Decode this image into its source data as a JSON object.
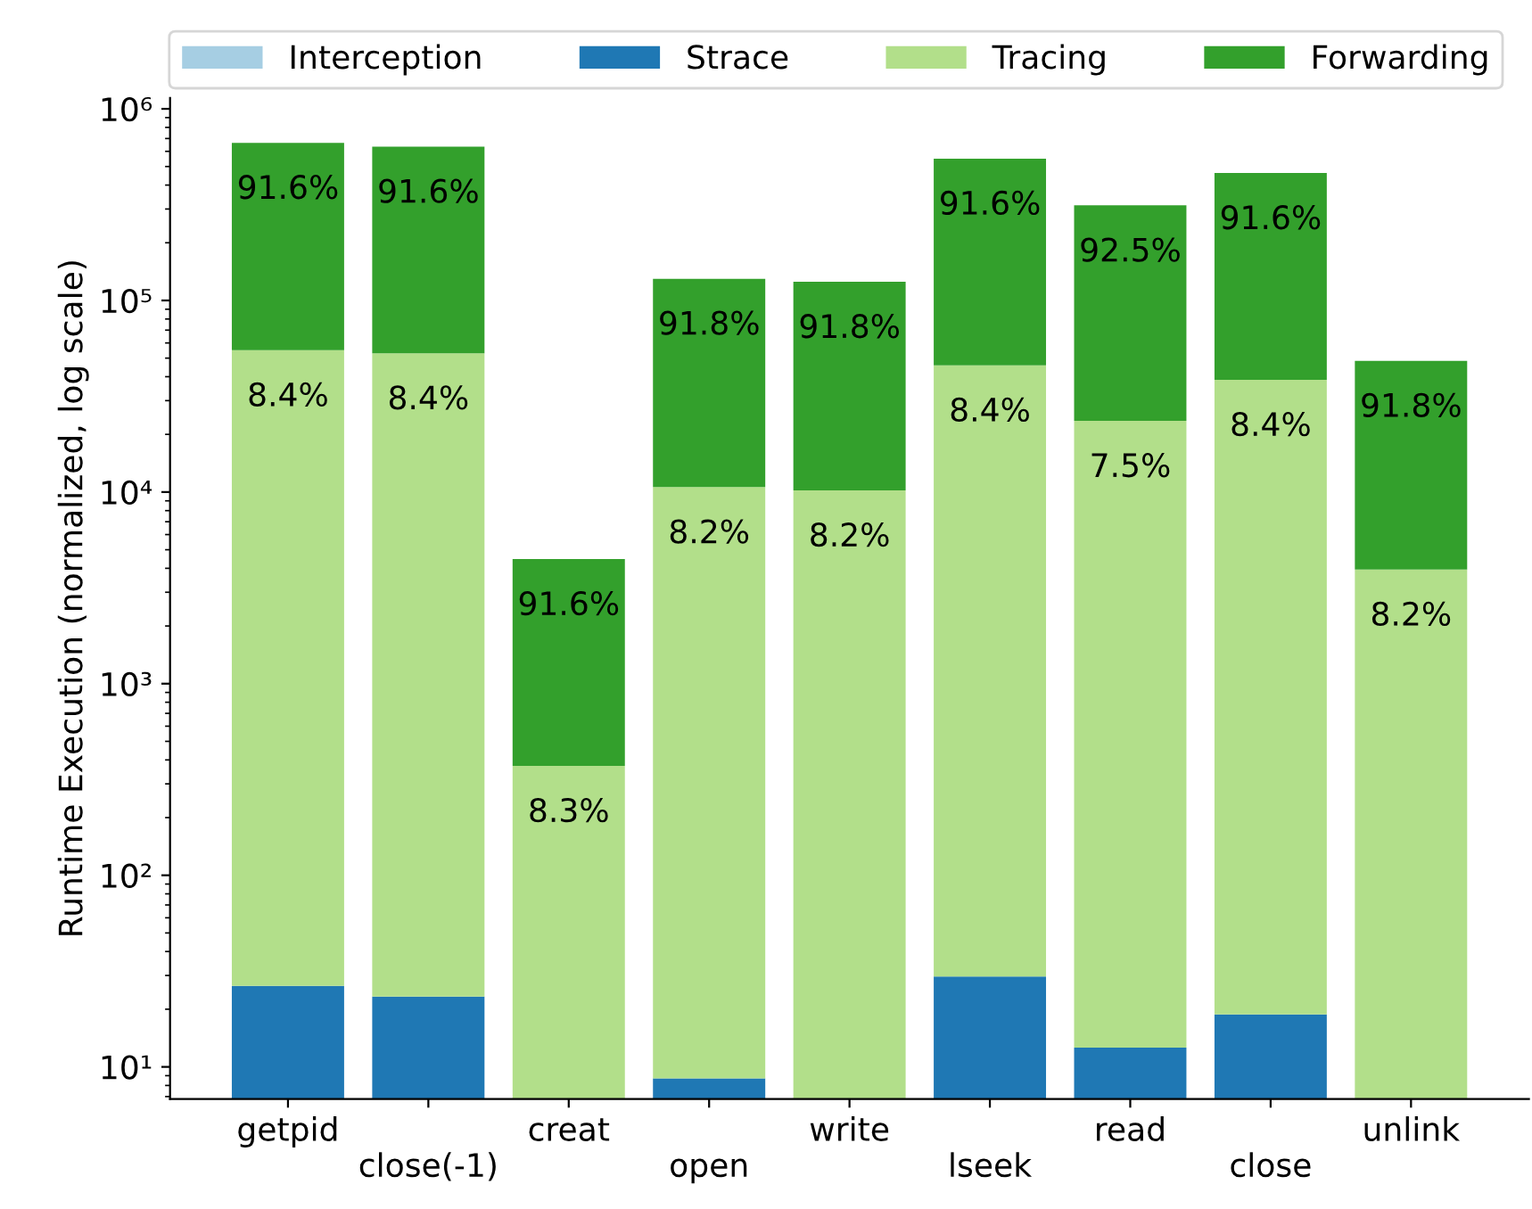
{
  "chart_data": {
    "type": "bar",
    "stacked": true,
    "log": true,
    "ylabel": "Runtime Execution (normalized, log scale)",
    "categories": [
      "getpid",
      "close(-1)",
      "creat",
      "open",
      "write",
      "lseek",
      "read",
      "close",
      "unlink"
    ],
    "series": [
      {
        "name": "Interception",
        "color": "#a6cee3",
        "values": [
          null,
          null,
          null,
          null,
          null,
          null,
          null,
          null,
          null
        ]
      },
      {
        "name": "Strace",
        "color": "#1f78b4",
        "values": [
          26.5,
          23.3,
          null,
          8.7,
          null,
          29.6,
          12.6,
          18.8,
          null
        ]
      },
      {
        "name": "Tracing",
        "color": "#b2df8a",
        "values": [
          55000,
          53000,
          372,
          10600,
          10200,
          45800,
          23500,
          38500,
          3940
        ]
      },
      {
        "name": "Forwarding",
        "color": "#33a02c",
        "values": [
          610000,
          581000,
          4100,
          119000,
          115000,
          504000,
          290000,
          424000,
          44500
        ]
      }
    ],
    "annotations": [
      {
        "text": "8.4%",
        "x": "getpid",
        "y": 55000
      },
      {
        "text": "91.6%",
        "x": "getpid",
        "y": 665000
      },
      {
        "text": "8.4%",
        "x": "close(-1)",
        "y": 53000
      },
      {
        "text": "91.6%",
        "x": "close(-1)",
        "y": 634000
      },
      {
        "text": "8.3%",
        "x": "creat",
        "y": 372
      },
      {
        "text": "91.6%",
        "x": "creat",
        "y": 4470
      },
      {
        "text": "8.2%",
        "x": "open",
        "y": 10600
      },
      {
        "text": "91.8%",
        "x": "open",
        "y": 130000
      },
      {
        "text": "8.2%",
        "x": "write",
        "y": 10200
      },
      {
        "text": "91.8%",
        "x": "write",
        "y": 125000
      },
      {
        "text": "8.4%",
        "x": "lseek",
        "y": 45800
      },
      {
        "text": "91.6%",
        "x": "lseek",
        "y": 550000
      },
      {
        "text": "7.5%",
        "x": "read",
        "y": 23500
      },
      {
        "text": "92.5%",
        "x": "read",
        "y": 313000
      },
      {
        "text": "8.4%",
        "x": "close",
        "y": 38500
      },
      {
        "text": "91.6%",
        "x": "close",
        "y": 462000
      },
      {
        "text": "8.2%",
        "x": "unlink",
        "y": 3940
      },
      {
        "text": "91.8%",
        "x": "unlink",
        "y": 48400
      }
    ],
    "ylim": [
      6.8,
      1140000
    ],
    "yticks": [
      {
        "value": 10,
        "label": "10¹"
      },
      {
        "value": 100,
        "label": "10²"
      },
      {
        "value": 1000,
        "label": "10³"
      },
      {
        "value": 10000,
        "label": "10⁴"
      },
      {
        "value": 100000,
        "label": "10⁵"
      },
      {
        "value": 1000000,
        "label": "10⁶"
      }
    ],
    "legend": "top",
    "grid": false
  }
}
